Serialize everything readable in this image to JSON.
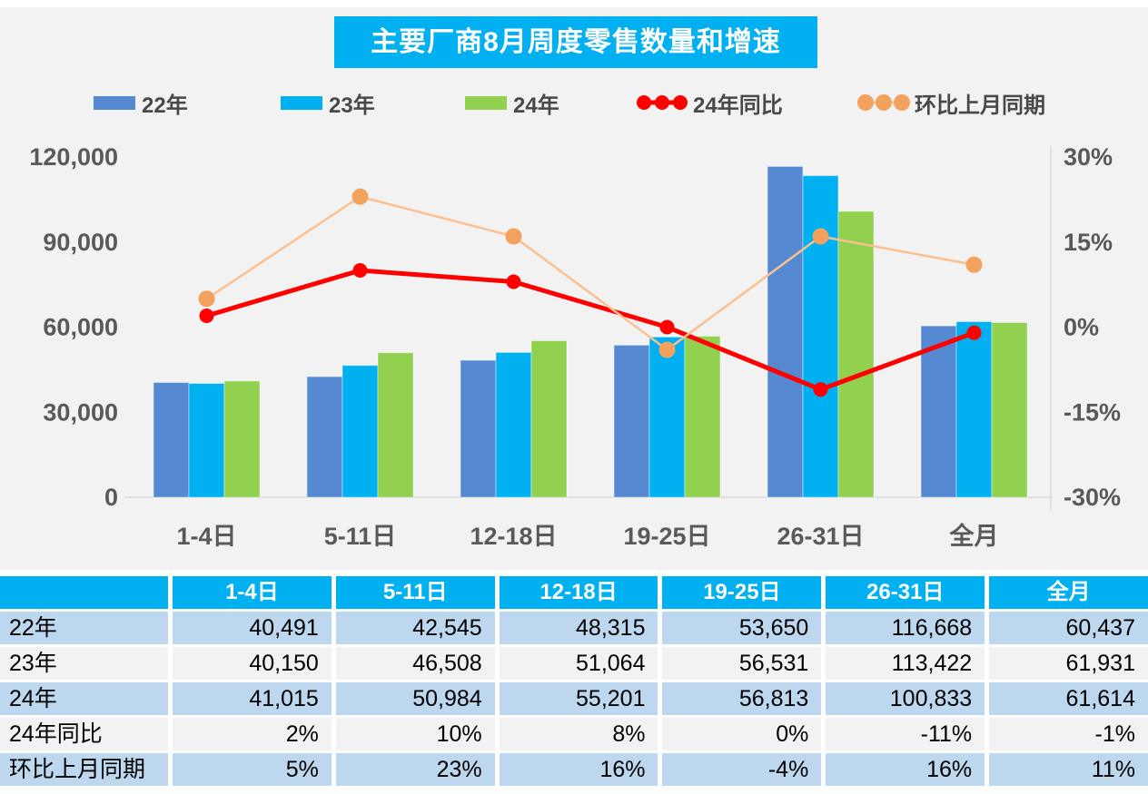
{
  "title": "主要厂商8月周度零售数量和增速",
  "chart_data": {
    "type": "combo_bar_line",
    "title": "主要厂商8月周度零售数量和增速",
    "categories": [
      "1-4日",
      "5-11日",
      "12-18日",
      "19-25日",
      "26-31日",
      "全月"
    ],
    "series": [
      {
        "name": "22年",
        "type": "bar",
        "axis": "left",
        "color": "#5589D2",
        "values": [
          40491,
          42545,
          48315,
          53650,
          116668,
          60437
        ]
      },
      {
        "name": "23年",
        "type": "bar",
        "axis": "left",
        "color": "#00B0F0",
        "values": [
          40150,
          46508,
          51064,
          56531,
          113422,
          61931
        ]
      },
      {
        "name": "24年",
        "type": "bar",
        "axis": "left",
        "color": "#92D050",
        "values": [
          41015,
          50984,
          55201,
          56813,
          100833,
          61614
        ]
      },
      {
        "name": "24年同比",
        "type": "line",
        "axis": "right",
        "color": "#FF0000",
        "line_color": "#FF0000",
        "marker_color": "#FF0000",
        "line_width": 5,
        "marker_radius": 8,
        "unit": "%",
        "values": [
          2,
          10,
          8,
          0,
          -11,
          -1
        ]
      },
      {
        "name": "环比上月同期",
        "type": "line",
        "axis": "right",
        "color": "#F2A25C",
        "line_color": "#FAC090",
        "marker_color": "#F2A25C",
        "line_width": 2.5,
        "marker_radius": 9,
        "unit": "%",
        "values": [
          5,
          23,
          16,
          -4,
          16,
          11
        ]
      }
    ],
    "left_axis": {
      "min": 0,
      "max": 120000,
      "tick_labels": [
        "0",
        "30,000",
        "60,000",
        "90,000",
        "120,000"
      ]
    },
    "right_axis": {
      "min": -30,
      "max": 30,
      "tick_labels": [
        "-30%",
        "-15%",
        "0%",
        "15%",
        "30%"
      ]
    },
    "grid": "off",
    "legend_position": "top"
  },
  "table": {
    "header": [
      "",
      "1-4日",
      "5-11日",
      "12-18日",
      "19-25日",
      "26-31日",
      "全月"
    ],
    "rows": [
      {
        "label": "22年",
        "values": [
          "40,491",
          "42,545",
          "48,315",
          "53,650",
          "116,668",
          "60,437"
        ]
      },
      {
        "label": "23年",
        "values": [
          "40,150",
          "46,508",
          "51,064",
          "56,531",
          "113,422",
          "61,931"
        ]
      },
      {
        "label": "24年",
        "values": [
          "41,015",
          "50,984",
          "55,201",
          "56,813",
          "100,833",
          "61,614"
        ]
      },
      {
        "label": "24年同比",
        "values": [
          "2%",
          "10%",
          "8%",
          "0%",
          "-11%",
          "-1%"
        ]
      },
      {
        "label": "环比上月同期",
        "values": [
          "5%",
          "23%",
          "16%",
          "-4%",
          "16%",
          "11%"
        ]
      }
    ]
  },
  "colors": {
    "accent_cyan": "#00B0F0",
    "bar_blue": "#5589D2",
    "bar_green": "#92D050",
    "line_red": "#FF0000",
    "line_orange": "#FAC090",
    "marker_orange": "#F2A25C",
    "row_blue": "#BDD7EE",
    "row_gray": "#F2F2F2",
    "axis_text": "#595959",
    "chart_background": "#F2F2F2"
  }
}
